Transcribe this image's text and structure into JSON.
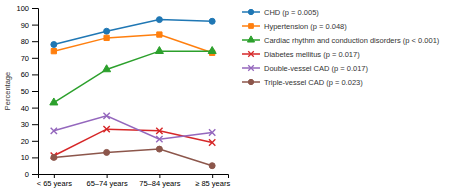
{
  "chart_data": {
    "type": "line",
    "categories": [
      "< 65 years",
      "65–74 years",
      "75–84 years",
      "≥ 85 years"
    ],
    "series": [
      {
        "name": "CHD (p = 0.005)",
        "values": [
          78,
          86,
          93,
          92
        ],
        "marker": "circle"
      },
      {
        "name": "Hypertension (p = 0.048)",
        "values": [
          74,
          82,
          84,
          73
        ],
        "marker": "square"
      },
      {
        "name": "Cardiac rhythm and conduction disorders (p < 0.001)",
        "values": [
          43,
          63,
          74,
          74
        ],
        "marker": "triangle"
      },
      {
        "name": "Diabetes mellitus (p = 0.017)",
        "values": [
          11,
          27,
          26,
          19
        ],
        "marker": "x"
      },
      {
        "name": "Double-vessel CAD (p = 0.017)",
        "values": [
          26,
          35,
          21,
          25
        ],
        "marker": "x"
      },
      {
        "name": "Triple-vessel CAD (p = 0.023)",
        "values": [
          10,
          13,
          15,
          5
        ],
        "marker": "circle"
      }
    ],
    "y_label": "Percentage",
    "ylim": [
      0,
      100
    ],
    "yticks": [
      0,
      10,
      20,
      30,
      40,
      50,
      60,
      70,
      80,
      90,
      100
    ],
    "grid": false,
    "legend": "right"
  }
}
